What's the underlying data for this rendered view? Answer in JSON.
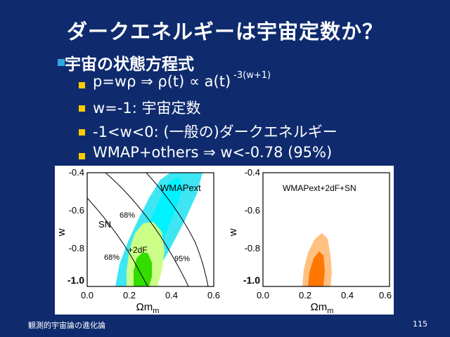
{
  "slide": {
    "title": "ダークエネルギーは宇宙定数か？",
    "heading": "宇宙の状態方程式",
    "bullets": {
      "eos": "p=wρ ⇒ ρ(t) ∝ a(t)",
      "eos_exp": "-3(w+1)",
      "lambda": "w=-1: 宇宙定数",
      "dark": "-1<w<0: (一般の)ダークエネルギー",
      "wmap": "WMAP+others ⇒  w<-0.78 (95%)"
    },
    "footer": "観測的宇宙論の進化論",
    "page_number": "115"
  },
  "figure": {
    "y_axis_label": "w",
    "x_axis_label": "Ωm",
    "y_ticks": [
      "-0.4",
      "-0.6",
      "-0.8",
      "-1.0"
    ],
    "x_ticks": [
      "0.0",
      "0.2",
      "0.4",
      "0.6"
    ],
    "left_panel": {
      "label_wmap": "WMAPext",
      "label_sn": "SN",
      "label_2df": "+2dF",
      "label_68_top": "68%",
      "label_68_bottom": "68%",
      "label_95": "95%"
    },
    "right_panel": {
      "label": "WMAPext+2dF+SN"
    },
    "colors": {
      "wmap_95": "#33e0f0",
      "wmap_68": "#00f0ff",
      "twodf_95": "#ccff88",
      "twodf_68": "#33dd00",
      "combined_95": "#ffc080",
      "combined_68": "#ff7700"
    }
  }
}
